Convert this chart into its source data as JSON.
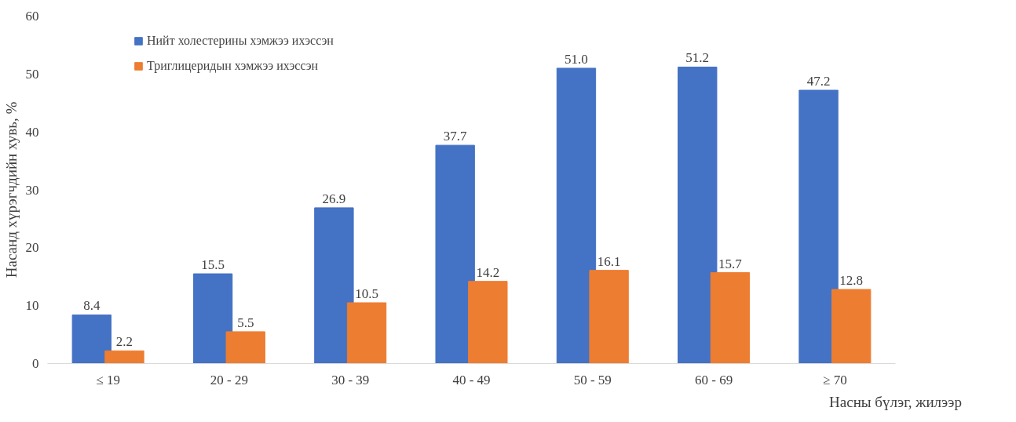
{
  "chart_data": {
    "type": "bar",
    "xlabel": "Насны бүлэг, жилээр",
    "ylabel": "Насанд хүрэгчдийн хувь, %",
    "categories": [
      "≤ 19",
      "20 - 29",
      "30 - 39",
      "40 - 49",
      "50 - 59",
      "60 - 69",
      "≥ 70"
    ],
    "series": [
      {
        "name": "Нийт холестерины хэмжээ ихэссэн",
        "color": "#4472c4",
        "values": [
          8.4,
          15.5,
          26.9,
          37.7,
          51.0,
          51.2,
          47.2
        ],
        "value_labels": [
          "8.4",
          "15.5",
          "26.9",
          "37.7",
          "51.0",
          "51.2",
          "47.2"
        ]
      },
      {
        "name": "Триглицеридын хэмжээ ихэссэн",
        "color": "#ed7d31",
        "values": [
          2.2,
          5.5,
          10.5,
          14.2,
          16.1,
          15.7,
          12.8
        ],
        "value_labels": [
          "2.2",
          "5.5",
          "10.5",
          "14.2",
          "16.1",
          "15.7",
          "12.8"
        ]
      }
    ],
    "ylim": [
      0,
      60
    ],
    "yticks": [
      0,
      10,
      20,
      30,
      40,
      50,
      60
    ],
    "grid": false,
    "legend": "top left"
  }
}
